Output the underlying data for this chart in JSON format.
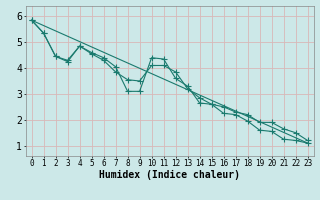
{
  "xlabel": "Humidex (Indice chaleur)",
  "bg_color": "#cce8e8",
  "grid_color": "#d8b8b8",
  "line_color": "#1a7a6e",
  "x_ticks": [
    0,
    1,
    2,
    3,
    4,
    5,
    6,
    7,
    8,
    9,
    10,
    11,
    12,
    13,
    14,
    15,
    16,
    17,
    18,
    19,
    20,
    21,
    22,
    23
  ],
  "y_ticks": [
    1,
    2,
    3,
    4,
    5,
    6
  ],
  "ylim": [
    0.6,
    6.4
  ],
  "xlim": [
    -0.5,
    23.5
  ],
  "line1_x": [
    0,
    1,
    2,
    3,
    4,
    5,
    6,
    7,
    8,
    9,
    10,
    11,
    12,
    13,
    14,
    15,
    16,
    17,
    18,
    19,
    20,
    21,
    22,
    23
  ],
  "line1_y": [
    5.85,
    5.35,
    4.45,
    4.3,
    4.85,
    4.6,
    4.4,
    4.05,
    3.1,
    3.1,
    4.4,
    4.35,
    3.6,
    3.3,
    2.65,
    2.6,
    2.25,
    2.2,
    1.95,
    1.6,
    1.55,
    1.25,
    1.2,
    1.1
  ],
  "line2_x": [
    0,
    1,
    2,
    3,
    4,
    5,
    6,
    7,
    8,
    9,
    10,
    11,
    12,
    13,
    14,
    15,
    16,
    17,
    18,
    19,
    20,
    21,
    22,
    23
  ],
  "line2_y": [
    5.85,
    5.35,
    4.45,
    4.25,
    4.85,
    4.55,
    4.3,
    3.85,
    3.55,
    3.5,
    4.1,
    4.1,
    3.85,
    3.2,
    2.85,
    2.6,
    2.5,
    2.3,
    2.2,
    1.9,
    1.9,
    1.65,
    1.5,
    1.2
  ],
  "line3_x": [
    0,
    23
  ],
  "line3_y": [
    5.85,
    1.1
  ],
  "marker_size": 2.5,
  "lw": 0.8
}
